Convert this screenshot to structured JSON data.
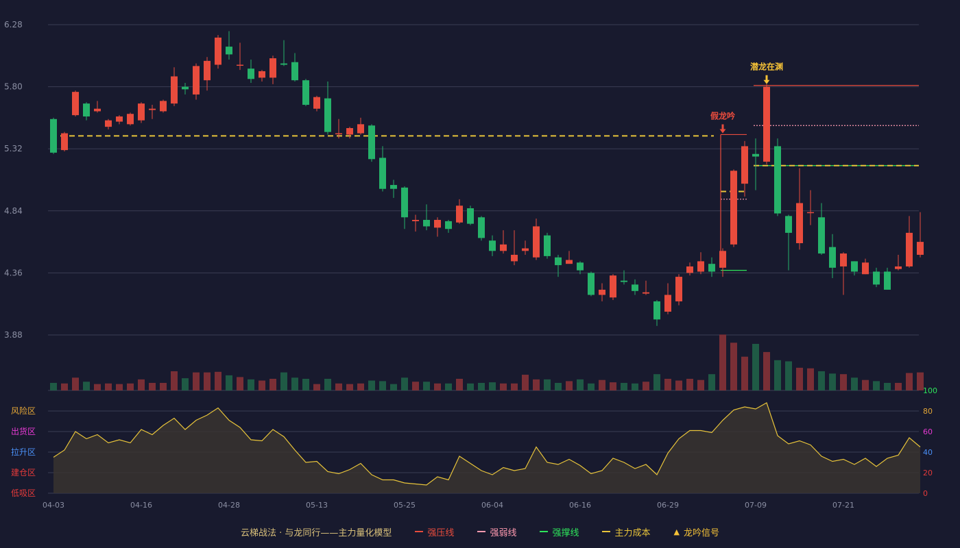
{
  "chart_data": {
    "type": "candlestick",
    "price_axis": {
      "ticks": [
        "6.28",
        "5.80",
        "5.32",
        "4.84",
        "4.36",
        "3.88"
      ],
      "min": 3.88,
      "max": 6.28
    },
    "x_ticks": [
      {
        "label": "04-03",
        "index": 0
      },
      {
        "label": "04-16",
        "index": 8
      },
      {
        "label": "04-28",
        "index": 16
      },
      {
        "label": "05-13",
        "index": 24
      },
      {
        "label": "05-25",
        "index": 32
      },
      {
        "label": "06-04",
        "index": 40
      },
      {
        "label": "06-16",
        "index": 48
      },
      {
        "label": "06-29",
        "index": 56
      },
      {
        "label": "07-09",
        "index": 64
      },
      {
        "label": "07-21",
        "index": 72
      }
    ],
    "candles": [
      [
        5.55,
        5.29,
        5.56,
        5.28
      ],
      [
        5.31,
        5.44,
        5.45,
        5.3
      ],
      [
        5.58,
        5.76,
        5.77,
        5.57
      ],
      [
        5.67,
        5.57,
        5.68,
        5.54
      ],
      [
        5.61,
        5.63,
        5.69,
        5.6
      ],
      [
        5.49,
        5.54,
        5.55,
        5.47
      ],
      [
        5.53,
        5.57,
        5.58,
        5.51
      ],
      [
        5.51,
        5.59,
        5.6,
        5.5
      ],
      [
        5.54,
        5.67,
        5.68,
        5.52
      ],
      [
        5.62,
        5.63,
        5.66,
        5.55
      ],
      [
        5.61,
        5.69,
        5.7,
        5.6
      ],
      [
        5.67,
        5.88,
        5.95,
        5.65
      ],
      [
        5.8,
        5.78,
        5.83,
        5.74
      ],
      [
        5.74,
        5.96,
        5.98,
        5.7
      ],
      [
        5.85,
        6.0,
        6.03,
        5.77
      ],
      [
        5.97,
        6.18,
        6.2,
        5.94
      ],
      [
        6.11,
        6.05,
        6.23,
        6.01
      ],
      [
        5.97,
        5.97,
        6.14,
        5.93
      ],
      [
        5.94,
        5.86,
        6.01,
        5.83
      ],
      [
        5.87,
        5.92,
        5.93,
        5.84
      ],
      [
        5.87,
        6.02,
        6.04,
        5.82
      ],
      [
        5.98,
        5.97,
        6.16,
        5.96
      ],
      [
        5.99,
        5.85,
        6.06,
        5.84
      ],
      [
        5.85,
        5.66,
        5.86,
        5.65
      ],
      [
        5.63,
        5.72,
        5.73,
        5.61
      ],
      [
        5.71,
        5.45,
        5.84,
        5.43
      ],
      [
        5.44,
        5.44,
        5.55,
        5.4
      ],
      [
        5.43,
        5.48,
        5.49,
        5.4
      ],
      [
        5.44,
        5.51,
        5.56,
        5.43
      ],
      [
        5.5,
        5.24,
        5.51,
        5.22
      ],
      [
        5.25,
        5.01,
        5.34,
        4.99
      ],
      [
        5.04,
        5.01,
        5.08,
        4.94
      ],
      [
        5.02,
        4.79,
        5.03,
        4.7
      ],
      [
        4.76,
        4.77,
        4.81,
        4.68
      ],
      [
        4.77,
        4.72,
        4.89,
        4.69
      ],
      [
        4.71,
        4.77,
        4.79,
        4.64
      ],
      [
        4.76,
        4.7,
        4.77,
        4.67
      ],
      [
        4.75,
        4.88,
        4.93,
        4.74
      ],
      [
        4.86,
        4.74,
        4.88,
        4.73
      ],
      [
        4.79,
        4.63,
        4.8,
        4.61
      ],
      [
        4.61,
        4.53,
        4.65,
        4.49
      ],
      [
        4.53,
        4.58,
        4.69,
        4.51
      ],
      [
        4.45,
        4.5,
        4.69,
        4.42
      ],
      [
        4.53,
        4.55,
        4.61,
        4.5
      ],
      [
        4.48,
        4.72,
        4.78,
        4.46
      ],
      [
        4.65,
        4.49,
        4.67,
        4.47
      ],
      [
        4.48,
        4.42,
        4.5,
        4.33
      ],
      [
        4.43,
        4.46,
        4.53,
        4.44
      ],
      [
        4.44,
        4.38,
        4.45,
        4.35
      ],
      [
        4.36,
        4.19,
        4.37,
        4.18
      ],
      [
        4.19,
        4.23,
        4.28,
        4.14
      ],
      [
        4.17,
        4.34,
        4.35,
        4.15
      ],
      [
        4.3,
        4.29,
        4.38,
        4.27
      ],
      [
        4.27,
        4.22,
        4.31,
        4.19
      ],
      [
        4.2,
        4.21,
        4.3,
        4.19
      ],
      [
        4.14,
        4.0,
        4.15,
        3.95
      ],
      [
        4.06,
        4.19,
        4.28,
        4.04
      ],
      [
        4.14,
        4.33,
        4.35,
        4.11
      ],
      [
        4.36,
        4.41,
        4.44,
        4.34
      ],
      [
        4.37,
        4.45,
        4.52,
        4.35
      ],
      [
        4.43,
        4.37,
        4.48,
        4.33
      ],
      [
        4.4,
        4.53,
        4.55,
        4.33
      ],
      [
        4.58,
        5.15,
        5.16,
        4.56
      ],
      [
        5.05,
        5.34,
        5.38,
        4.95
      ],
      [
        5.28,
        5.26,
        5.4,
        5.0
      ],
      [
        5.22,
        5.8,
        5.82,
        5.2
      ],
      [
        5.34,
        4.82,
        5.4,
        4.8
      ],
      [
        4.8,
        4.67,
        4.81,
        4.38
      ],
      [
        4.59,
        4.9,
        5.17,
        4.54
      ],
      [
        4.83,
        4.83,
        5.0,
        4.73
      ],
      [
        4.79,
        4.51,
        4.9,
        4.5
      ],
      [
        4.56,
        4.4,
        4.66,
        4.32
      ],
      [
        4.41,
        4.51,
        4.52,
        4.19
      ],
      [
        4.45,
        4.37,
        4.45,
        4.34
      ],
      [
        4.35,
        4.44,
        4.47,
        4.35
      ],
      [
        4.37,
        4.27,
        4.4,
        4.25
      ],
      [
        4.37,
        4.23,
        4.4,
        4.23
      ],
      [
        4.39,
        4.41,
        4.5,
        4.38
      ],
      [
        4.41,
        4.67,
        4.8,
        4.4
      ],
      [
        4.5,
        4.6,
        4.83,
        4.48
      ]
    ],
    "volume": [
      13,
      12,
      22,
      15,
      11,
      12,
      11,
      12,
      19,
      13,
      13,
      33,
      21,
      31,
      31,
      32,
      26,
      23,
      19,
      17,
      20,
      31,
      22,
      20,
      11,
      20,
      12,
      11,
      12,
      17,
      16,
      11,
      22,
      15,
      15,
      12,
      12,
      20,
      12,
      13,
      14,
      12,
      12,
      27,
      19,
      19,
      13,
      16,
      19,
      12,
      18,
      14,
      13,
      12,
      15,
      28,
      20,
      17,
      20,
      18,
      28,
      96,
      82,
      58,
      80,
      66,
      52,
      50,
      39,
      38,
      33,
      29,
      28,
      22,
      18,
      16,
      13,
      13,
      30,
      31
    ],
    "oscillator": {
      "left_labels": [
        "风险区",
        "出货区",
        "拉升区",
        "建仓区",
        "低吸区"
      ],
      "right_ticks": [
        "100",
        "80",
        "60",
        "40",
        "20",
        "0"
      ],
      "right_tick_colors": [
        "#2ee45b",
        "#e3a637",
        "#e83ad4",
        "#4a8ff5",
        "#e33a3a",
        "#e33a3a"
      ],
      "values": [
        35,
        42,
        60,
        53,
        57,
        49,
        52,
        49,
        62,
        57,
        66,
        73,
        62,
        71,
        76,
        83,
        71,
        64,
        52,
        51,
        62,
        55,
        42,
        30,
        31,
        21,
        19,
        23,
        29,
        18,
        13,
        13,
        10,
        9,
        8,
        16,
        13,
        36,
        29,
        22,
        18,
        25,
        22,
        24,
        45,
        30,
        28,
        33,
        27,
        19,
        22,
        34,
        30,
        24,
        28,
        18,
        39,
        53,
        61,
        61,
        59,
        71,
        81,
        84,
        82,
        88,
        56,
        48,
        51,
        47,
        36,
        31,
        33,
        28,
        34,
        26,
        34,
        37,
        54,
        45
      ]
    },
    "lines": {
      "main_cost_early": {
        "price": 5.42,
        "from": 0,
        "to": 60,
        "color": "#e8c43a",
        "style": "dashed"
      },
      "false_dragon_resist": {
        "price": 5.43,
        "from": 61,
        "to": 63,
        "color": "#e84c3d",
        "style": "solid"
      },
      "false_dragon_cost": {
        "price": 4.99,
        "from": 61,
        "to": 63,
        "color": "#e8c43a",
        "style": "dashed"
      },
      "false_dragon_weak": {
        "price": 4.93,
        "from": 61,
        "to": 63,
        "color": "#ff9ab0",
        "style": "dotted"
      },
      "false_dragon_support": {
        "price": 4.38,
        "from": 61,
        "to": 63,
        "color": "#2ee45b",
        "style": "solid"
      },
      "dragon_resist": {
        "price": 5.81,
        "from": 64,
        "to": 79,
        "color": "#e84c3d",
        "style": "solid"
      },
      "dragon_weak": {
        "price": 5.5,
        "from": 64,
        "to": 79,
        "color": "#ff9ab0",
        "style": "dotted"
      },
      "dragon_support": {
        "price": 5.19,
        "from": 64,
        "to": 79,
        "color": "#2ee45b",
        "style": "solid"
      },
      "dragon_cost": {
        "price": 5.19,
        "from": 64,
        "to": 79,
        "color": "#e8c43a",
        "style": "dashed"
      }
    },
    "annotations": [
      {
        "text": "假龙吟",
        "index": 61,
        "price": 5.52,
        "color": "#e84c3d"
      },
      {
        "text": "潜龙在渊",
        "index": 65,
        "price": 5.9,
        "color": "#f5c237"
      }
    ],
    "legend": [
      {
        "label": "云梯战法 · 与龙同行——主力量化模型",
        "color": "#d9c07a",
        "marker": "none"
      },
      {
        "label": "强压线",
        "color": "#e84c3d",
        "marker": "line"
      },
      {
        "label": "强弱线",
        "color": "#ff9ab0",
        "marker": "dash"
      },
      {
        "label": "强撑线",
        "color": "#2ee45b",
        "marker": "line"
      },
      {
        "label": "主力成本",
        "color": "#e8c43a",
        "marker": "dash"
      },
      {
        "label": "龙吟信号",
        "color": "#f5c237",
        "marker": "triangle"
      }
    ],
    "colors": {
      "up": "#e84c3d",
      "down": "#26b36a",
      "up_volume": "#7a2f36",
      "down_volume": "#1f5a45",
      "grid": "#3a3d54",
      "axis_text": "#8b8fa3",
      "osc_line": "#e8c43a",
      "osc_fill": "#3b3530"
    }
  }
}
